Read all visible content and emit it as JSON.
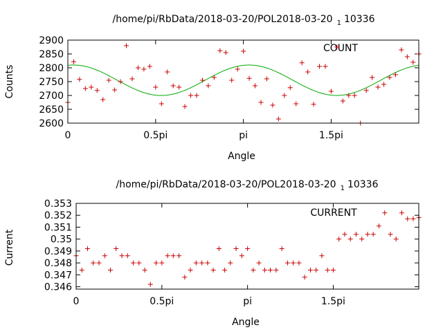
{
  "chart_data": [
    {
      "type": "scatter",
      "title": "/home/pi/RbData/2018-03-20/POL2018-03-20",
      "title_sub": "1",
      "title_tail": "10336",
      "xlabel": "Angle",
      "ylabel": "Counts",
      "legend": "COUNT",
      "legend_position": "top-right",
      "xlim": [
        0,
        6.28
      ],
      "ylim": [
        2600,
        2900
      ],
      "x_tick_values": [
        0,
        1.5708,
        3.1416,
        4.7124
      ],
      "x_tick_labels": [
        "0",
        "0.5pi",
        "pi",
        "1.5pi"
      ],
      "y_ticks": [
        2600,
        2650,
        2700,
        2750,
        2800,
        2850,
        2900
      ],
      "point_color": "#cc0000",
      "fit_color": "#00aa00",
      "fit": {
        "mean": 2755,
        "amplitude": 55,
        "period": 3.1416,
        "phase": -0.2
      },
      "x": [
        0.0,
        0.105,
        0.209,
        0.314,
        0.419,
        0.524,
        0.628,
        0.733,
        0.838,
        0.942,
        1.047,
        1.152,
        1.257,
        1.361,
        1.466,
        1.571,
        1.676,
        1.78,
        1.885,
        1.99,
        2.094,
        2.199,
        2.304,
        2.409,
        2.513,
        2.618,
        2.723,
        2.827,
        2.932,
        3.037,
        3.142,
        3.246,
        3.351,
        3.456,
        3.56,
        3.665,
        3.77,
        3.875,
        3.979,
        4.084,
        4.189,
        4.294,
        4.398,
        4.503,
        4.608,
        4.712,
        4.817,
        4.922,
        5.027,
        5.131,
        5.236,
        5.341,
        5.445,
        5.55,
        5.655,
        5.76,
        5.864,
        5.969,
        6.074,
        6.178,
        6.283
      ],
      "y": [
        2675,
        2822,
        2758,
        2725,
        2730,
        2718,
        2685,
        2755,
        2720,
        2750,
        2880,
        2760,
        2800,
        2795,
        2805,
        2730,
        2670,
        2785,
        2735,
        2730,
        2660,
        2700,
        2700,
        2755,
        2735,
        2765,
        2862,
        2855,
        2755,
        2795,
        2860,
        2762,
        2735,
        2675,
        2760,
        2665,
        2615,
        2700,
        2728,
        2670,
        2818,
        2785,
        2668,
        2805,
        2805,
        2715,
        2875,
        2680,
        2700,
        2700,
        2600,
        2718,
        2765,
        2730,
        2740,
        2765,
        2775,
        2865,
        2840,
        2820,
        2850
      ]
    },
    {
      "type": "scatter",
      "title": "/home/pi/RbData/2018-03-20/POL2018-03-20",
      "title_sub": "1",
      "title_tail": "10336",
      "xlabel": "Angle",
      "ylabel": "Current",
      "legend": "CURRENT",
      "legend_position": "top-right",
      "xlim": [
        0,
        6.28
      ],
      "ylim": [
        0.3458,
        0.353
      ],
      "x_tick_values": [
        0,
        1.5708,
        3.1416,
        4.7124
      ],
      "x_tick_labels": [
        "0",
        "0.5pi",
        "pi",
        "1.5pi"
      ],
      "y_ticks": [
        0.346,
        0.347,
        0.348,
        0.349,
        0.35,
        0.351,
        0.352,
        0.353
      ],
      "y_tick_labels": [
        "0.346",
        "0.347",
        "0.348",
        "0.349",
        "0.35",
        "0.351",
        "0.352",
        "0.353"
      ],
      "point_color": "#cc0000",
      "x": [
        0.0,
        0.105,
        0.209,
        0.314,
        0.419,
        0.524,
        0.628,
        0.733,
        0.838,
        0.942,
        1.047,
        1.152,
        1.257,
        1.361,
        1.466,
        1.571,
        1.676,
        1.78,
        1.885,
        1.99,
        2.094,
        2.199,
        2.304,
        2.409,
        2.513,
        2.618,
        2.723,
        2.827,
        2.932,
        3.037,
        3.142,
        3.246,
        3.351,
        3.456,
        3.56,
        3.665,
        3.77,
        3.875,
        3.979,
        4.084,
        4.189,
        4.294,
        4.398,
        4.503,
        4.608,
        4.712,
        4.817,
        4.922,
        5.027,
        5.131,
        5.236,
        5.341,
        5.445,
        5.55,
        5.655,
        5.76,
        5.864,
        5.969,
        6.074,
        6.178,
        6.283
      ],
      "y": [
        0.3486,
        0.3474,
        0.3492,
        0.348,
        0.348,
        0.3486,
        0.3474,
        0.3492,
        0.3486,
        0.3486,
        0.348,
        0.348,
        0.3474,
        0.3462,
        0.348,
        0.348,
        0.3486,
        0.3486,
        0.3486,
        0.3468,
        0.3474,
        0.348,
        0.348,
        0.348,
        0.3474,
        0.3492,
        0.3474,
        0.348,
        0.3492,
        0.3486,
        0.3492,
        0.3474,
        0.348,
        0.3474,
        0.3474,
        0.3474,
        0.3492,
        0.348,
        0.348,
        0.348,
        0.3468,
        0.3474,
        0.3474,
        0.3486,
        0.3474,
        0.3474,
        0.35,
        0.3504,
        0.35,
        0.3504,
        0.35,
        0.3504,
        0.3504,
        0.3511,
        0.3522,
        0.3504,
        0.35,
        0.3522,
        0.3517,
        0.3517,
        0.3518
      ]
    }
  ]
}
